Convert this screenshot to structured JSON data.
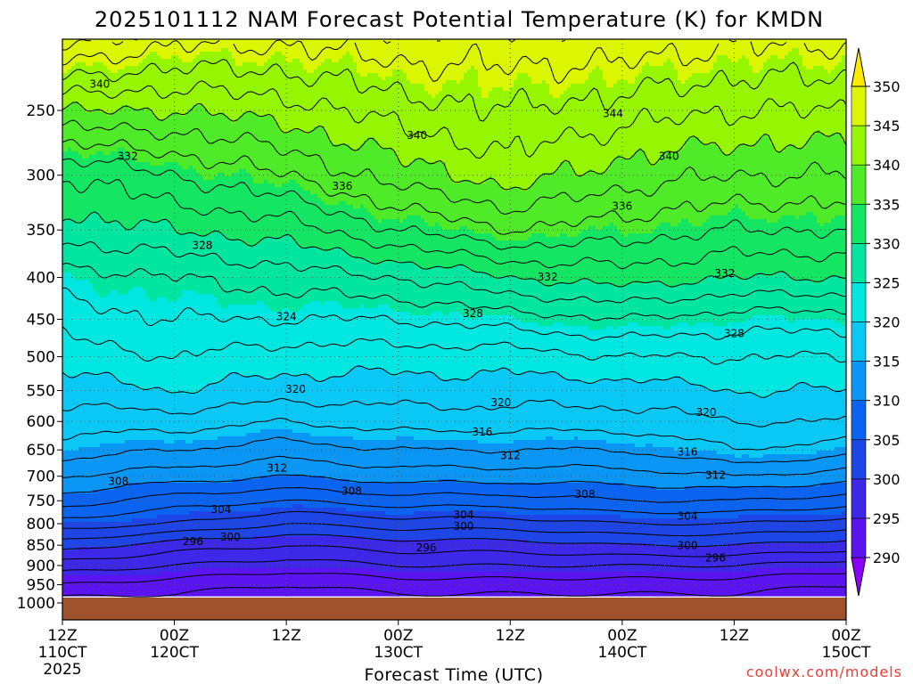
{
  "chart_data": {
    "type": "time-height contour",
    "title": "2025101112 NAM Forecast Potential Temperature (K) for KMDN",
    "xlabel": "Forecast Time (UTC)",
    "ylabel": "",
    "x_ticks": [
      {
        "top": "12Z",
        "bottom": "110CT",
        "year": "2025"
      },
      {
        "top": "00Z",
        "bottom": "120CT",
        "year": ""
      },
      {
        "top": "12Z",
        "bottom": "",
        "year": ""
      },
      {
        "top": "00Z",
        "bottom": "130CT",
        "year": ""
      },
      {
        "top": "12Z",
        "bottom": "",
        "year": ""
      },
      {
        "top": "00Z",
        "bottom": "140CT",
        "year": ""
      },
      {
        "top": "12Z",
        "bottom": "",
        "year": ""
      },
      {
        "top": "00Z",
        "bottom": "150CT",
        "year": ""
      }
    ],
    "forecast_hours": [
      0,
      12,
      24,
      36,
      48,
      60,
      72,
      84
    ],
    "pressure_levels_hpa": [
      1000,
      950,
      900,
      850,
      800,
      750,
      700,
      650,
      600,
      550,
      500,
      450,
      400,
      350,
      300,
      250
    ],
    "pressure_tick_labels": [
      "1000",
      "950",
      "900",
      "850",
      "800",
      "750",
      "700",
      "650",
      "600",
      "550",
      "500",
      "450",
      "400",
      "350",
      "300",
      "250"
    ],
    "ylim_hpa": [
      1035,
      205
    ],
    "colorbar": {
      "unit": "K",
      "bounds": [
        285,
        290,
        295,
        300,
        305,
        310,
        315,
        320,
        325,
        330,
        335,
        340,
        345,
        350,
        355
      ],
      "tick_labels": [
        "290",
        "295",
        "300",
        "305",
        "310",
        "315",
        "320",
        "325",
        "330",
        "335",
        "340",
        "345",
        "350"
      ],
      "colors": [
        "#8b00ff",
        "#5a14ef",
        "#3c28e6",
        "#1e46e6",
        "#0a64f0",
        "#0a96f5",
        "#0ac8f5",
        "#00e6e1",
        "#00e6a0",
        "#14e664",
        "#50eb28",
        "#96f500",
        "#dcf500",
        "#ffeb00"
      ],
      "extend": "both"
    },
    "series": [
      {
        "name": "theta_K",
        "levels_hpa": [
          1000,
          950,
          900,
          850,
          800,
          750,
          700,
          650,
          600,
          550,
          500,
          450,
          400,
          350,
          300,
          250
        ],
        "values_by_time": {
          "0": [
            291,
            294,
            297,
            301,
            305,
            309,
            312,
            315,
            317,
            319,
            321,
            323,
            325,
            329,
            332,
            340
          ],
          "12": [
            291,
            293,
            296,
            299,
            304,
            307,
            311,
            314,
            317,
            320,
            322,
            324,
            326,
            330,
            334,
            340
          ],
          "24": [
            290,
            292,
            295,
            298,
            302,
            306,
            310,
            313,
            316,
            319,
            321,
            324,
            327,
            331,
            336,
            341
          ],
          "36": [
            291,
            293,
            296,
            299,
            303,
            307,
            311,
            314,
            317,
            319,
            321,
            324,
            328,
            334,
            339,
            343
          ],
          "48": [
            291,
            293,
            296,
            299,
            303,
            307,
            311,
            314,
            317,
            319,
            321,
            325,
            330,
            336,
            341,
            344
          ],
          "60": [
            291,
            293,
            296,
            300,
            304,
            308,
            311,
            314,
            317,
            319,
            322,
            326,
            331,
            335,
            339,
            343
          ],
          "72": [
            291,
            293,
            296,
            300,
            304,
            308,
            312,
            316,
            318,
            320,
            322,
            325,
            330,
            334,
            338,
            342
          ],
          "84": [
            290,
            292,
            295,
            299,
            303,
            307,
            311,
            315,
            318,
            320,
            322,
            325,
            330,
            334,
            338,
            342
          ]
        }
      }
    ],
    "contour_labels": [
      {
        "value": "340",
        "hour": 4,
        "hpa": 232
      },
      {
        "value": "332",
        "hour": 7,
        "hpa": 284
      },
      {
        "value": "328",
        "hour": 15,
        "hpa": 365
      },
      {
        "value": "324",
        "hour": 24,
        "hpa": 446
      },
      {
        "value": "320",
        "hour": 25,
        "hpa": 547
      },
      {
        "value": "312",
        "hour": 23,
        "hpa": 683
      },
      {
        "value": "308",
        "hour": 6,
        "hpa": 709
      },
      {
        "value": "304",
        "hour": 17,
        "hpa": 768
      },
      {
        "value": "300",
        "hour": 18,
        "hpa": 830
      },
      {
        "value": "296",
        "hour": 14,
        "hpa": 840
      },
      {
        "value": "336",
        "hour": 30,
        "hpa": 309
      },
      {
        "value": "340",
        "hour": 38,
        "hpa": 268
      },
      {
        "value": "308",
        "hour": 31,
        "hpa": 729
      },
      {
        "value": "328",
        "hour": 44,
        "hpa": 442
      },
      {
        "value": "316",
        "hour": 45,
        "hpa": 617
      },
      {
        "value": "320",
        "hour": 47,
        "hpa": 568
      },
      {
        "value": "312",
        "hour": 48,
        "hpa": 660
      },
      {
        "value": "304",
        "hour": 43,
        "hpa": 779
      },
      {
        "value": "300",
        "hour": 43,
        "hpa": 805
      },
      {
        "value": "296",
        "hour": 39,
        "hpa": 855
      },
      {
        "value": "344",
        "hour": 59,
        "hpa": 252
      },
      {
        "value": "336",
        "hour": 60,
        "hpa": 327
      },
      {
        "value": "332",
        "hour": 52,
        "hpa": 399
      },
      {
        "value": "308",
        "hour": 56,
        "hpa": 736
      },
      {
        "value": "340",
        "hour": 65,
        "hpa": 284
      },
      {
        "value": "332",
        "hour": 71,
        "hpa": 395
      },
      {
        "value": "328",
        "hour": 72,
        "hpa": 468
      },
      {
        "value": "320",
        "hour": 69,
        "hpa": 584
      },
      {
        "value": "316",
        "hour": 67,
        "hpa": 653
      },
      {
        "value": "312",
        "hour": 70,
        "hpa": 697
      },
      {
        "value": "304",
        "hour": 67,
        "hpa": 782
      },
      {
        "value": "300",
        "hour": 67,
        "hpa": 850
      },
      {
        "value": "296",
        "hour": 70,
        "hpa": 880
      }
    ],
    "grid": "dotted",
    "legend": "right colorbar"
  },
  "credit": "coolwx.com/models"
}
